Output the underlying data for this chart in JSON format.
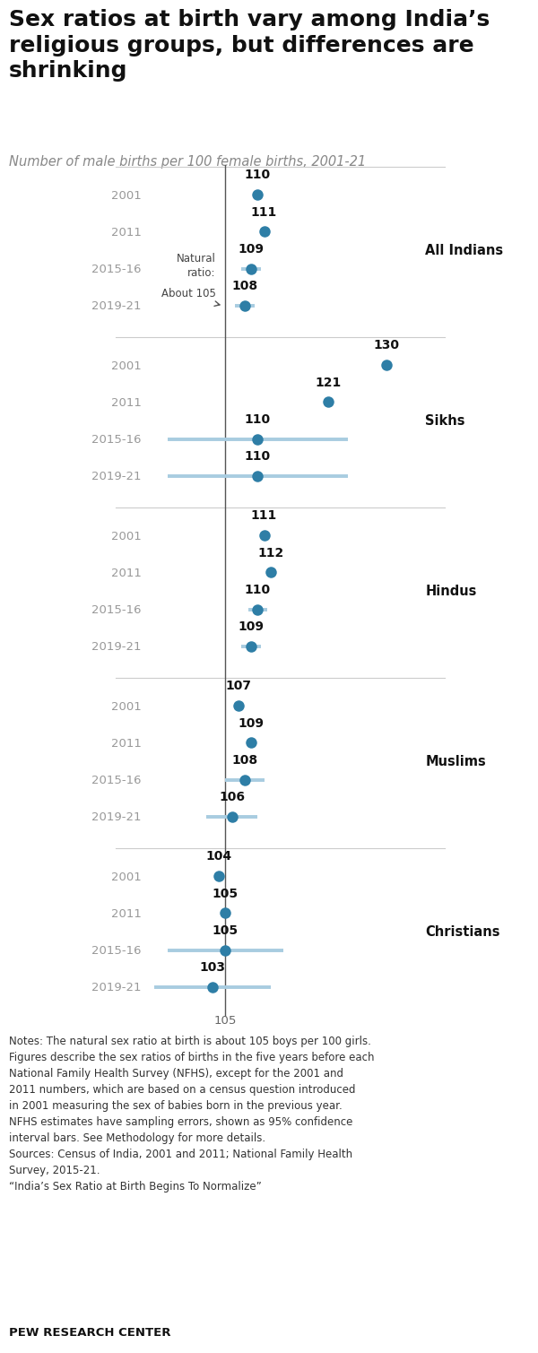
{
  "title": "Sex ratios at birth vary among India’s\nreligious groups, but differences are\nshrinking",
  "subtitle": "Number of male births per 100 female births, 2001-21",
  "groups": [
    {
      "name": "All Indians",
      "years": [
        "2001",
        "2011",
        "2015-16",
        "2019-21"
      ],
      "values": [
        110,
        111,
        109,
        108
      ],
      "ci_low": [
        null,
        null,
        107.5,
        106.5
      ],
      "ci_high": [
        null,
        null,
        110.5,
        109.5
      ]
    },
    {
      "name": "Sikhs",
      "years": [
        "2001",
        "2011",
        "2015-16",
        "2019-21"
      ],
      "values": [
        130,
        121,
        110,
        110
      ],
      "ci_low": [
        null,
        null,
        96,
        96
      ],
      "ci_high": [
        null,
        null,
        124,
        124
      ]
    },
    {
      "name": "Hindus",
      "years": [
        "2001",
        "2011",
        "2015-16",
        "2019-21"
      ],
      "values": [
        111,
        112,
        110,
        109
      ],
      "ci_low": [
        null,
        null,
        108.5,
        107.5
      ],
      "ci_high": [
        null,
        null,
        111.5,
        110.5
      ]
    },
    {
      "name": "Muslims",
      "years": [
        "2001",
        "2011",
        "2015-16",
        "2019-21"
      ],
      "values": [
        107,
        109,
        108,
        106
      ],
      "ci_low": [
        null,
        null,
        105,
        102
      ],
      "ci_high": [
        null,
        null,
        111,
        110
      ]
    },
    {
      "name": "Christians",
      "years": [
        "2001",
        "2011",
        "2015-16",
        "2019-21"
      ],
      "values": [
        104,
        105,
        105,
        103
      ],
      "ci_low": [
        null,
        null,
        96,
        94
      ],
      "ci_high": [
        null,
        null,
        114,
        112
      ]
    }
  ],
  "natural_ratio": 105,
  "dot_color": "#2E7EA6",
  "ci_color": "#A8CCE0",
  "year_color": "#999999",
  "name_color": "#111111",
  "value_color": "#111111",
  "background_color": "#FFFFFF",
  "separator_color": "#CCCCCC",
  "vline_color": "#555555",
  "notes_text": "Notes: The natural sex ratio at birth is about 105 boys per 100 girls.\nFigures describe the sex ratios of births in the five years before each\nNational Family Health Survey (NFHS), except for the 2001 and\n2011 numbers, which are based on a census question introduced\nin 2001 measuring the sex of babies born in the previous year.\nNFHS estimates have sampling errors, shown as 95% confidence\ninterval bars. See Methodology for more details.\nSources: Census of India, 2001 and 2011; National Family Health\nSurvey, 2015-21.\n“India’s Sex Ratio at Birth Begins To Normalize”",
  "pew_text": "PEW RESEARCH CENTER"
}
